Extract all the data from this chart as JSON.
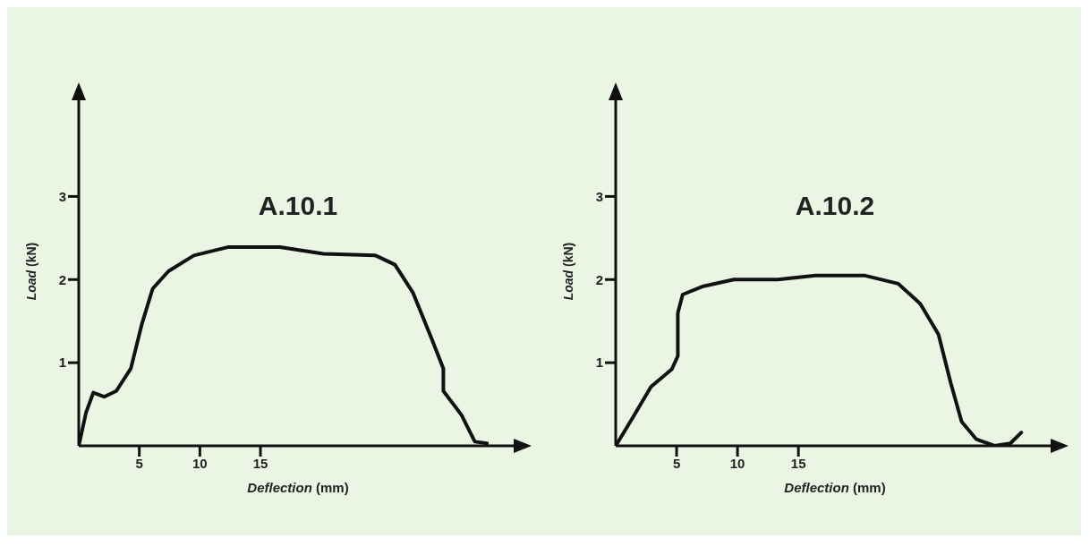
{
  "chart_data": [
    {
      "type": "line",
      "title": "A.10.1",
      "xlabel": "Deflection (mm)",
      "ylabel": "Load (kN)",
      "xlim": [
        0,
        36.2
      ],
      "xticks": [
        5,
        10,
        15
      ],
      "ylim": [
        0,
        4.2
      ],
      "yticks": [
        1,
        2,
        3
      ],
      "marker": "none",
      "line_style": "solid",
      "series": [
        {
          "color": "#111111",
          "x": [
            0,
            0.6,
            1.2,
            2.1,
            3.1,
            4.3,
            5.2,
            6.1,
            7.4,
            9.5,
            12.3,
            16.6,
            20.2,
            24.5,
            26.1,
            27.6,
            29.1,
            30.1,
            30.1,
            31.6,
            32.7,
            33.7
          ],
          "values": [
            0,
            0.4,
            0.64,
            0.59,
            0.66,
            0.93,
            1.46,
            1.89,
            2.1,
            2.29,
            2.39,
            2.39,
            2.31,
            2.29,
            2.18,
            1.84,
            1.3,
            0.93,
            0.66,
            0.37,
            0.05,
            0.03
          ]
        }
      ]
    },
    {
      "type": "line",
      "title": "A.10.2",
      "xlabel": "Deflection (mm)",
      "ylabel": "Load (kN)",
      "xlim": [
        0,
        36
      ],
      "xticks": [
        5,
        10,
        15
      ],
      "ylim": [
        0,
        4.2
      ],
      "yticks": [
        1,
        2,
        3
      ],
      "marker": "none",
      "line_style": "solid",
      "series": [
        {
          "color": "#111111",
          "x": [
            0,
            1.4,
            2.9,
            4.6,
            5.1,
            5.1,
            5.5,
            7.2,
            9.7,
            13.3,
            16.4,
            20.4,
            23.2,
            25,
            26.5,
            27.5,
            28.4,
            29.6,
            31.1,
            32.4,
            33.3
          ],
          "values": [
            0,
            0.34,
            0.71,
            0.92,
            1.08,
            1.6,
            1.82,
            1.92,
            2,
            2,
            2.05,
            2.05,
            1.95,
            1.71,
            1.34,
            0.76,
            0.29,
            0.08,
            0,
            0.03,
            0.16
          ]
        }
      ]
    }
  ]
}
